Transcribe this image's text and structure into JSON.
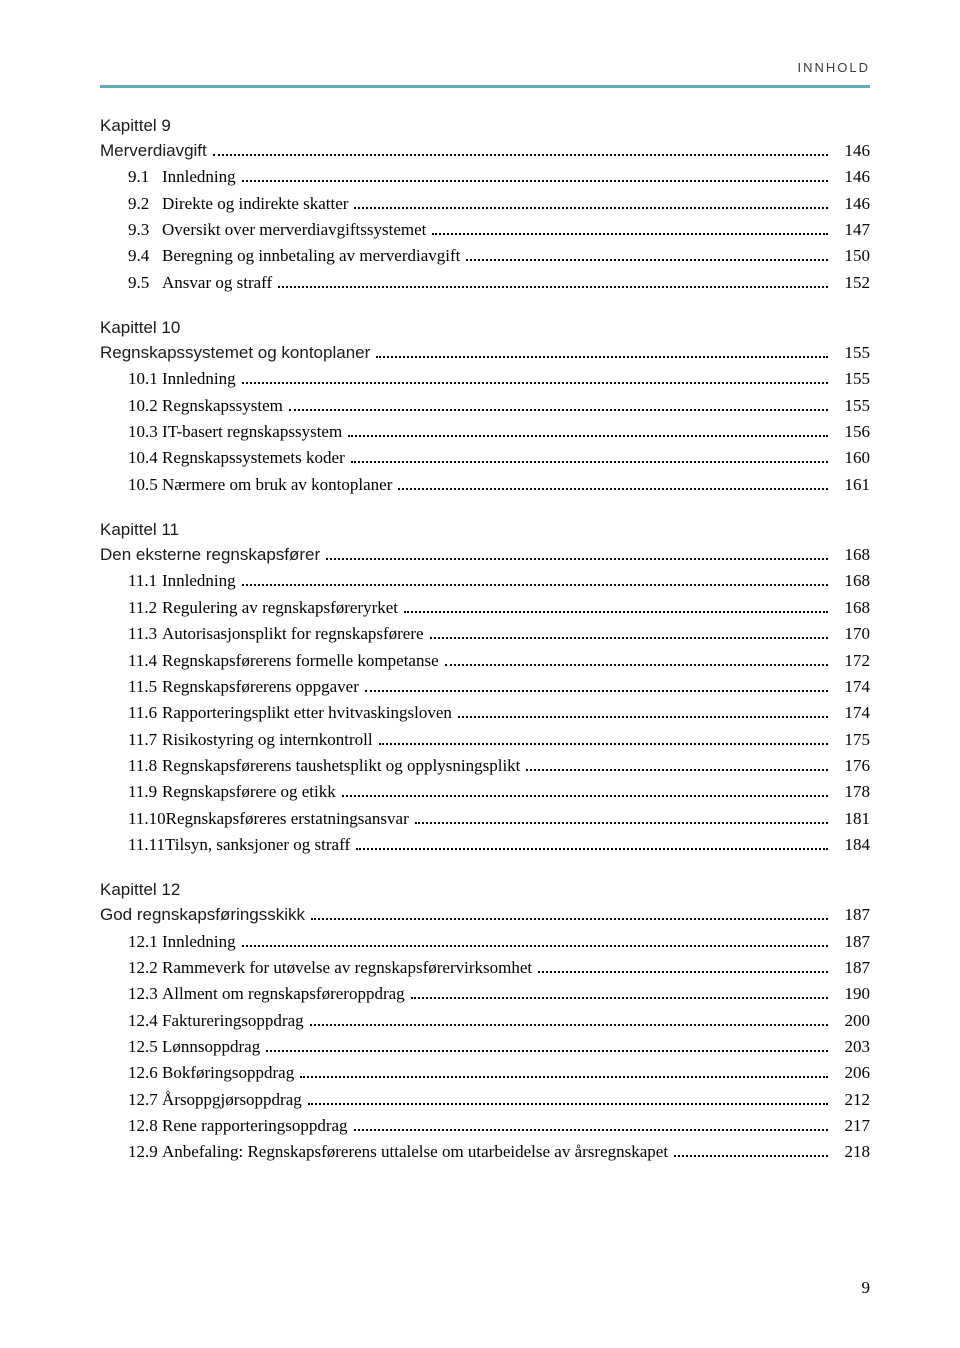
{
  "header": {
    "running_head": "Innhold"
  },
  "colors": {
    "accent": "#5aadc1",
    "text": "#000000",
    "background": "#ffffff"
  },
  "style": {
    "leaders": "dotted",
    "body_font": "Georgia",
    "heading_font": "Verdana",
    "body_fontsize_pt": 12,
    "heading_fontsize_pt": 12
  },
  "page_number": "9",
  "chapters": [
    {
      "label": "Kapittel 9",
      "title": {
        "text": "Merverdiavgift",
        "page": "146"
      },
      "entries": [
        {
          "num": "9.1",
          "text": "Innledning",
          "page": "146"
        },
        {
          "num": "9.2",
          "text": "Direkte og indirekte skatter",
          "page": "146"
        },
        {
          "num": "9.3",
          "text": "Oversikt over merverdiavgiftssystemet",
          "page": "147"
        },
        {
          "num": "9.4",
          "text": "Beregning og innbetaling av merverdiavgift",
          "page": "150"
        },
        {
          "num": "9.5",
          "text": "Ansvar og straff",
          "page": "152"
        }
      ]
    },
    {
      "label": "Kapittel 10",
      "title": {
        "text": "Regnskapssystemet og kontoplaner",
        "page": "155"
      },
      "entries": [
        {
          "num": "10.1",
          "text": "Innledning",
          "page": "155"
        },
        {
          "num": "10.2",
          "text": "Regnskapssystem",
          "page": "155"
        },
        {
          "num": "10.3",
          "text": "IT-basert regnskapssystem",
          "page": "156"
        },
        {
          "num": "10.4",
          "text": "Regnskapssystemets koder",
          "page": "160"
        },
        {
          "num": "10.5",
          "text": "Nærmere om bruk av kontoplaner",
          "page": "161"
        }
      ]
    },
    {
      "label": "Kapittel 11",
      "title": {
        "text": "Den eksterne regnskapsfører",
        "page": "168"
      },
      "entries": [
        {
          "num": "11.1",
          "text": "Innledning",
          "page": "168"
        },
        {
          "num": "11.2",
          "text": "Regulering av regnskapsføreryrket",
          "page": "168"
        },
        {
          "num": "11.3",
          "text": "Autorisasjonsplikt for regnskapsførere",
          "page": "170"
        },
        {
          "num": "11.4",
          "text": "Regnskapsførerens formelle kompetanse",
          "page": "172"
        },
        {
          "num": "11.5",
          "text": "Regnskapsførerens oppgaver",
          "page": "174"
        },
        {
          "num": "11.6",
          "text": "Rapporteringsplikt etter hvitvaskingsloven",
          "page": "174"
        },
        {
          "num": "11.7",
          "text": "Risikostyring og internkontroll",
          "page": "175"
        },
        {
          "num": "11.8",
          "text": "Regnskapsførerens taushetsplikt og opplysningsplikt",
          "page": "176"
        },
        {
          "num": "11.9",
          "text": "Regnskapsførere og etikk",
          "page": "178"
        },
        {
          "num": "11.10",
          "text": "Regnskapsføreres erstatningsansvar",
          "page": "181"
        },
        {
          "num": "11.11",
          "text": "Tilsyn, sanksjoner og straff",
          "page": "184"
        }
      ]
    },
    {
      "label": "Kapittel 12",
      "title": {
        "text": "God regnskapsføringsskikk",
        "page": "187"
      },
      "entries": [
        {
          "num": "12.1",
          "text": "Innledning",
          "page": "187"
        },
        {
          "num": "12.2",
          "text": "Rammeverk for utøvelse av regnskapsførervirksomhet",
          "page": "187"
        },
        {
          "num": "12.3",
          "text": "Allment om regnskapsføreroppdrag",
          "page": "190"
        },
        {
          "num": "12.4",
          "text": "Faktureringsoppdrag",
          "page": "200"
        },
        {
          "num": "12.5",
          "text": "Lønnsoppdrag",
          "page": "203"
        },
        {
          "num": "12.6",
          "text": "Bokføringsoppdrag",
          "page": "206"
        },
        {
          "num": "12.7",
          "text": "Årsoppgjørsoppdrag",
          "page": "212"
        },
        {
          "num": "12.8",
          "text": "Rene rapporteringsoppdrag",
          "page": "217"
        },
        {
          "num": "12.9",
          "text": "Anbefaling: Regnskapsførerens uttalelse om utarbeidelse av årsregnskapet",
          "page": "218"
        }
      ]
    }
  ]
}
